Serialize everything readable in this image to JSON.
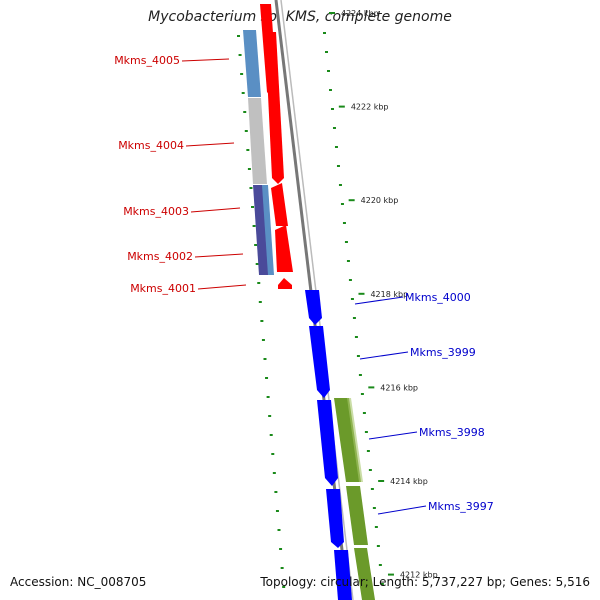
{
  "title": "Mycobacterium sp. KMS, complete genome",
  "footer": {
    "accession": "Accession: NC_008705",
    "summary": "Topology: circular; Length: 5,737,227 bp; Genes: 5,516"
  },
  "colors": {
    "forward_cds": "#ff0000",
    "reverse_cds": "#0000ff",
    "orthologs_a": "#5a8fc4",
    "orthologs_b": "#c0c0c0",
    "orthologs_c": "#4a4a9a",
    "orthologs_d": "#6b9a2a",
    "backbone": "#888888",
    "gc_ticks": "#1a8a1a",
    "left_labels": "#cc0000",
    "right_labels": "#0000cc"
  },
  "scale_labels": [
    {
      "label": "4224 kbp",
      "kbp": 4224
    },
    {
      "label": "4222 kbp",
      "kbp": 4222
    },
    {
      "label": "4220 kbp",
      "kbp": 4220
    },
    {
      "label": "4218 kbp",
      "kbp": 4218
    },
    {
      "label": "4216 kbp",
      "kbp": 4216
    },
    {
      "label": "4214 kbp",
      "kbp": 4214
    },
    {
      "label": "4212 kbp",
      "kbp": 4212
    }
  ],
  "left_genes": [
    {
      "label": "Mkms_4005"
    },
    {
      "label": "Mkms_4004"
    },
    {
      "label": "Mkms_4003"
    },
    {
      "label": "Mkms_4002"
    },
    {
      "label": "Mkms_4001"
    }
  ],
  "right_genes": [
    {
      "label": "Mkms_4000"
    },
    {
      "label": "Mkms_3999"
    },
    {
      "label": "Mkms_3998"
    },
    {
      "label": "Mkms_3997"
    }
  ]
}
